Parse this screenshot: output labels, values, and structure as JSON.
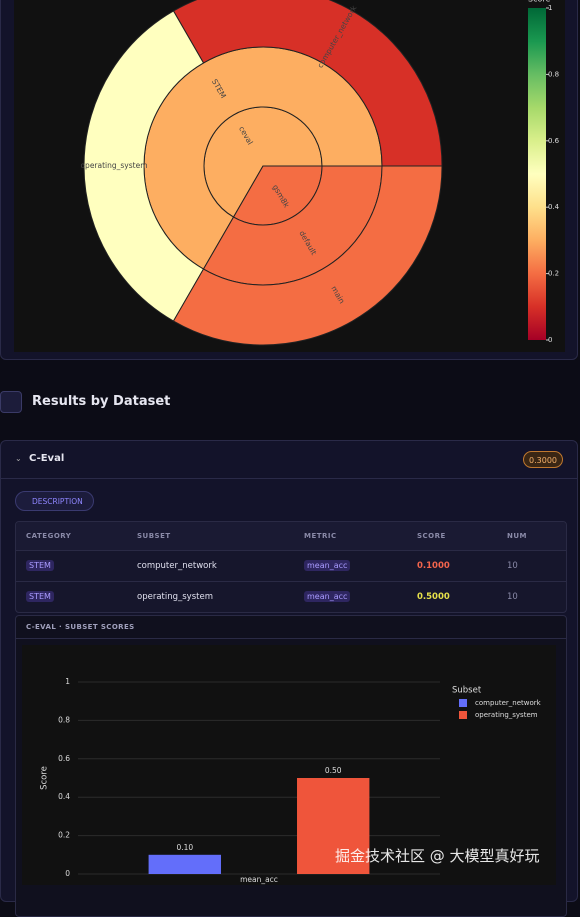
{
  "chart_data": [
    {
      "type": "sunburst",
      "colorbar_title": "Score",
      "colorscale": [
        [
          0,
          "#a50026"
        ],
        [
          0.1,
          "#d73027"
        ],
        [
          0.2,
          "#f46d43"
        ],
        [
          0.3,
          "#fdae61"
        ],
        [
          0.4,
          "#fee08b"
        ],
        [
          0.5,
          "#ffffbf"
        ],
        [
          0.6,
          "#d9ef8b"
        ],
        [
          0.7,
          "#a6d96a"
        ],
        [
          0.8,
          "#66bd63"
        ],
        [
          0.9,
          "#1a9850"
        ],
        [
          1,
          "#006837"
        ]
      ],
      "colorbar_ticks": [
        0,
        0.2,
        0.4,
        0.6,
        0.8,
        1
      ],
      "nodes": [
        {
          "label": "ceval",
          "parent": null,
          "score": 0.3
        },
        {
          "label": "gsm8k",
          "parent": null,
          "score": 0.2
        },
        {
          "label": "STEM",
          "parent": 0,
          "score": 0.3
        },
        {
          "label": "default",
          "parent": 1,
          "score": 0.2
        },
        {
          "label": "computer_network",
          "parent": 2,
          "score": 0.1,
          "value": 10
        },
        {
          "label": "operating_system",
          "parent": 2,
          "score": 0.5,
          "value": 10
        },
        {
          "label": "main",
          "parent": 3,
          "score": 0.2,
          "value": 10
        }
      ]
    },
    {
      "type": "bar",
      "title": "C-EVAL · SUBSET SCORES",
      "categories": [
        "mean_acc"
      ],
      "y_label": "Score",
      "legend_title": "Subset",
      "legend_position": "right",
      "series": [
        {
          "name": "computer_network",
          "color": "#636efa",
          "values": [
            0.1
          ],
          "value_labels": [
            "0.10"
          ]
        },
        {
          "name": "operating_system",
          "color": "#ef553b",
          "values": [
            0.5
          ],
          "value_labels": [
            "0.50"
          ]
        }
      ],
      "ylim": [
        0,
        1
      ],
      "yticks": [
        0,
        0.2,
        0.4,
        0.6,
        0.8,
        1
      ],
      "grid": true
    }
  ],
  "section_title": "Results by Dataset",
  "dataset": {
    "name": "C-Eval",
    "score_badge": "0.3000",
    "description_button": "DESCRIPTION",
    "table": {
      "headers": [
        "CATEGORY",
        "SUBSET",
        "METRIC",
        "SCORE",
        "NUM"
      ],
      "rows": [
        [
          "STEM",
          "computer_network",
          "mean_acc",
          "0.1000",
          10
        ],
        [
          "STEM",
          "operating_system",
          "mean_acc",
          "0.5000",
          10
        ]
      ]
    }
  },
  "watermark": "掘金技术社区 @ 大模型真好玩"
}
